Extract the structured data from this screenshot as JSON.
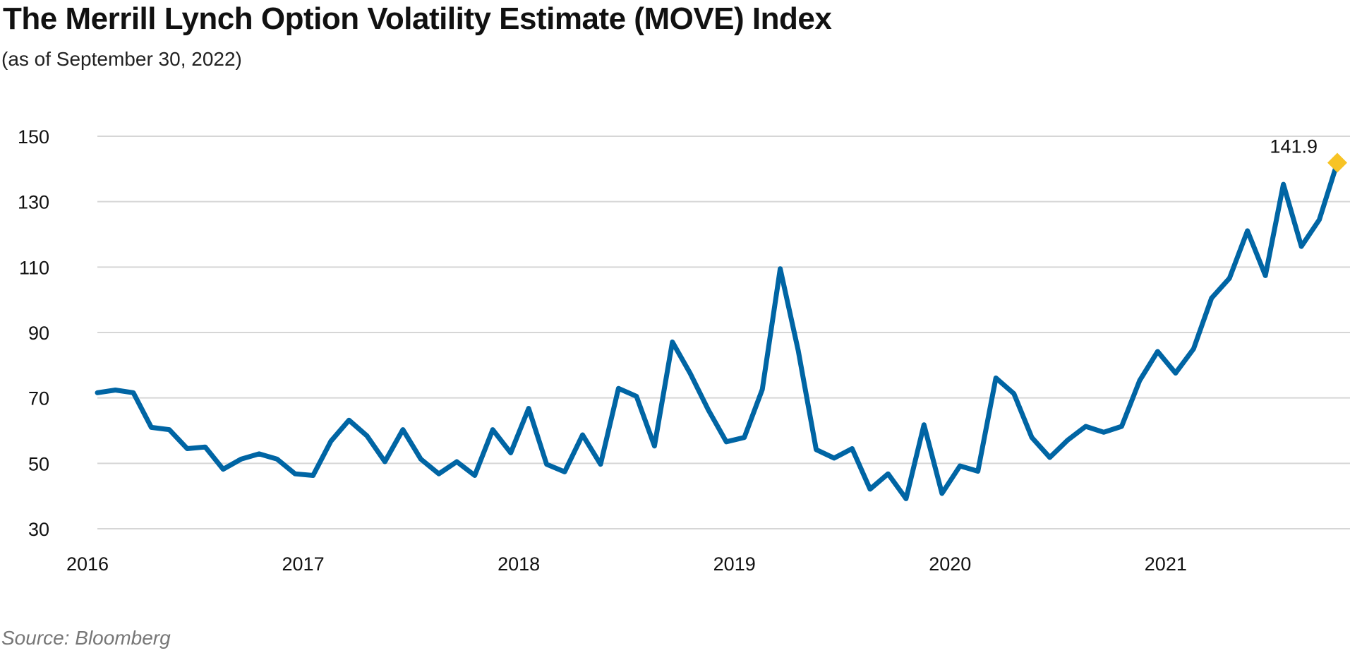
{
  "chart_data": {
    "type": "line",
    "title": "The Merrill Lynch Option Volatility Estimate (MOVE) Index",
    "subtitle": "(as of September 30, 2022)",
    "source": "Source: Bloomberg",
    "xlabel": "",
    "ylabel": "",
    "ylim": [
      30,
      150
    ],
    "yticks": [
      "30",
      "50",
      "70",
      "90",
      "110",
      "130",
      "150"
    ],
    "yticks_values": [
      30,
      50,
      70,
      90,
      110,
      130,
      150
    ],
    "xticks": [
      {
        "label": "2016",
        "index": 0
      },
      {
        "label": "2017",
        "index": 12
      },
      {
        "label": "2018",
        "index": 24
      },
      {
        "label": "2019",
        "index": 36
      },
      {
        "label": "2020",
        "index": 48
      },
      {
        "label": "2021",
        "index": 60
      }
    ],
    "grid": true,
    "series": [
      {
        "name": "MOVE Index",
        "color": "#0065a4",
        "values": [
          71.6,
          72.4,
          71.6,
          61,
          60.3,
          54.5,
          55,
          48.2,
          51.3,
          52.9,
          51.3,
          46.8,
          46.3,
          56.8,
          63.2,
          58.4,
          50.5,
          60.3,
          51.3,
          46.8,
          50.5,
          46.3,
          60.3,
          53.2,
          66.8,
          49.7,
          47.4,
          58.7,
          49.7,
          72.9,
          70.5,
          55.3,
          87.1,
          77.4,
          66.3,
          56.6,
          57.9,
          72.6,
          109.5,
          84.5,
          54.2,
          51.6,
          54.5,
          42.1,
          46.8,
          39.2,
          61.8,
          40.8,
          49.2,
          47.6,
          76.1,
          71.3,
          57.9,
          51.8,
          57.1,
          61.3,
          59.5,
          61.3,
          75.3,
          84.2,
          77.6,
          85,
          100.5,
          106.6,
          121.1,
          107.4,
          135.3,
          116.3,
          124.5,
          141.9
        ]
      }
    ],
    "annotation": {
      "label": "141.9",
      "marker_color": "#f7c325"
    }
  }
}
